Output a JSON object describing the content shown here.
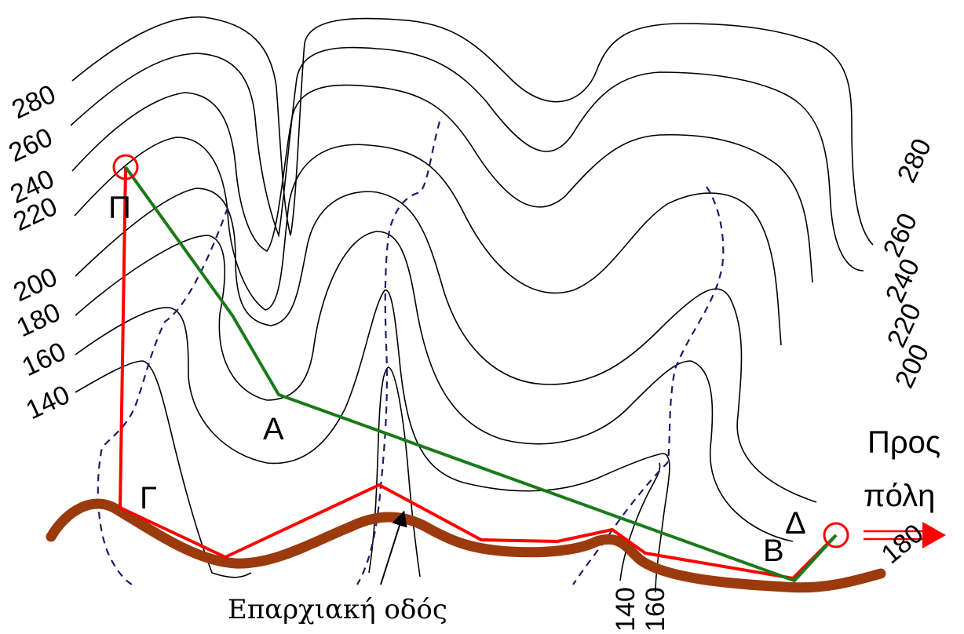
{
  "contour_labels": {
    "left": [
      "280",
      "260",
      "240",
      "220",
      "200",
      "180",
      "160",
      "140"
    ],
    "right": [
      "280",
      "260",
      "240",
      "220",
      "200",
      "180"
    ],
    "bottom": [
      "140",
      "160"
    ]
  },
  "points": {
    "p": "Π",
    "a": "Α",
    "g": "Γ",
    "d": "Δ",
    "b": "Β"
  },
  "road_label": "Επαρχιακή οδός",
  "city_label": [
    "Προς",
    "πόλη"
  ],
  "colors": {
    "road": "#9b3a0c",
    "route_red": "#ff0000",
    "route_green": "#1a7a1a",
    "stream": "#1c1c6b",
    "contour": "#000000"
  }
}
